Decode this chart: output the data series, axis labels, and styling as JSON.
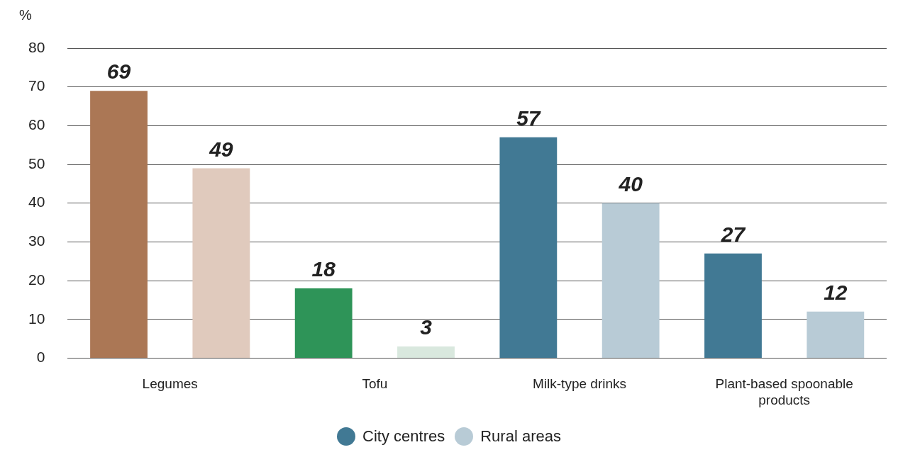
{
  "chart_data": {
    "type": "bar",
    "ylabel": "%",
    "categories": [
      "Legumes",
      "Tofu",
      "Milk-type drinks",
      "Plant-based spoonable products"
    ],
    "series": [
      {
        "name": "City centres",
        "color": "#417994",
        "colors": [
          "#ab7755",
          "#2e9458",
          "#417994",
          "#417994"
        ],
        "values": [
          69,
          18,
          57,
          27
        ]
      },
      {
        "name": "Rural areas",
        "color": "#b8cbd6",
        "colors": [
          "#e0cabd",
          "#d9e8de",
          "#b8cbd6",
          "#b8cbd6"
        ],
        "values": [
          49,
          3,
          40,
          12
        ]
      }
    ],
    "ylim": [
      0,
      80
    ],
    "yticks": [
      0,
      10,
      20,
      30,
      40,
      50,
      60,
      70,
      80
    ],
    "grid": "y",
    "legend": "bottom",
    "data_labels": true
  }
}
